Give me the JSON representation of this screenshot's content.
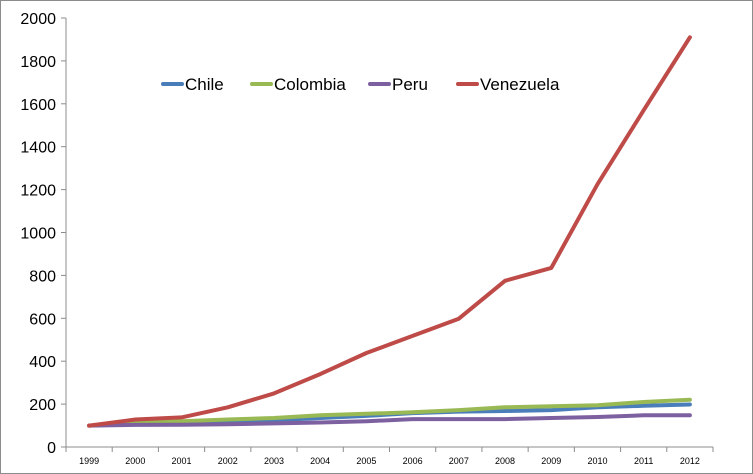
{
  "chart_data": {
    "type": "line",
    "x": [
      "1999",
      "2000",
      "2001",
      "2002",
      "2003",
      "2004",
      "2005",
      "2006",
      "2007",
      "2008",
      "2009",
      "2010",
      "2011",
      "2012"
    ],
    "ylim": [
      0,
      2000
    ],
    "yticks": [
      "0",
      "200",
      "400",
      "600",
      "800",
      "1000",
      "1200",
      "1400",
      "1600",
      "1800",
      "2000"
    ],
    "grid": false,
    "legend_position": "top-left inside plot",
    "series": [
      {
        "name": "Chile",
        "color": "#4a7ebb",
        "values": [
          100,
          108,
          112,
          118,
          125,
          135,
          145,
          158,
          165,
          168,
          172,
          185,
          192,
          198
        ]
      },
      {
        "name": "Colombia",
        "color": "#98b954",
        "values": [
          100,
          112,
          120,
          128,
          135,
          148,
          155,
          162,
          172,
          185,
          190,
          195,
          210,
          220
        ]
      },
      {
        "name": "Peru",
        "color": "#7d60a0",
        "values": [
          100,
          103,
          104,
          106,
          110,
          114,
          120,
          130,
          130,
          130,
          135,
          140,
          148,
          148
        ]
      },
      {
        "name": "Venezuela",
        "color": "#be4b48",
        "values": [
          100,
          128,
          138,
          185,
          250,
          340,
          438,
          518,
          598,
          775,
          835,
          1225,
          1570,
          1910
        ]
      }
    ]
  }
}
